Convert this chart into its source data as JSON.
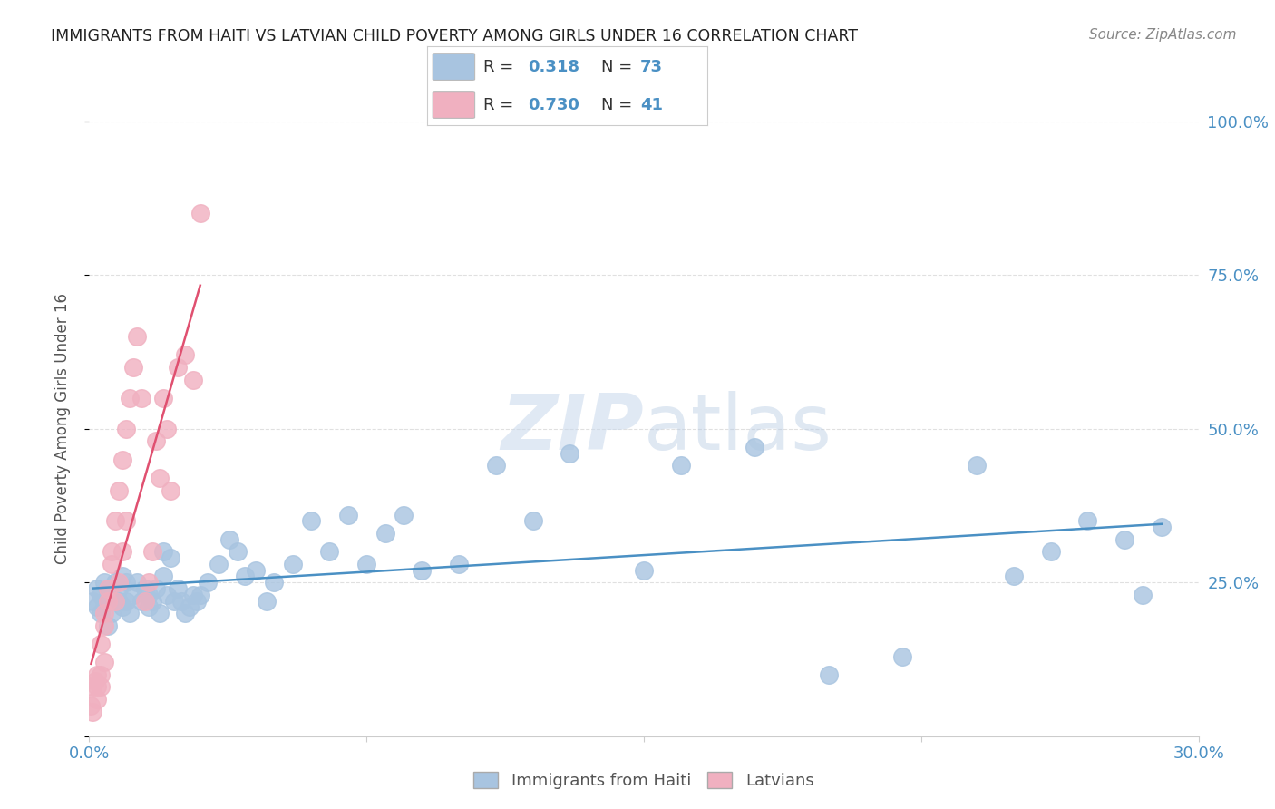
{
  "title": "IMMIGRANTS FROM HAITI VS LATVIAN CHILD POVERTY AMONG GIRLS UNDER 16 CORRELATION CHART",
  "source": "Source: ZipAtlas.com",
  "ylabel": "Child Poverty Among Girls Under 16",
  "xlim": [
    0.0,
    0.3
  ],
  "ylim": [
    0.0,
    1.0
  ],
  "yticks": [
    0.0,
    0.25,
    0.5,
    0.75,
    1.0
  ],
  "ytick_labels": [
    "",
    "25.0%",
    "50.0%",
    "75.0%",
    "100.0%"
  ],
  "xticks": [
    0.0,
    0.075,
    0.15,
    0.225,
    0.3
  ],
  "xtick_labels": [
    "0.0%",
    "",
    "",
    "",
    "30.0%"
  ],
  "series": [
    {
      "name": "Immigrants from Haiti",
      "R": 0.318,
      "N": 73,
      "color": "#a8c4e0",
      "line_color": "#4a90c4",
      "x": [
        0.001,
        0.002,
        0.002,
        0.003,
        0.003,
        0.004,
        0.004,
        0.005,
        0.005,
        0.005,
        0.006,
        0.006,
        0.007,
        0.008,
        0.008,
        0.009,
        0.009,
        0.01,
        0.01,
        0.011,
        0.012,
        0.013,
        0.014,
        0.015,
        0.016,
        0.016,
        0.017,
        0.018,
        0.019,
        0.02,
        0.02,
        0.021,
        0.022,
        0.023,
        0.024,
        0.025,
        0.026,
        0.027,
        0.028,
        0.029,
        0.03,
        0.032,
        0.035,
        0.038,
        0.04,
        0.042,
        0.045,
        0.048,
        0.05,
        0.055,
        0.06,
        0.065,
        0.07,
        0.075,
        0.08,
        0.085,
        0.09,
        0.1,
        0.11,
        0.12,
        0.13,
        0.15,
        0.16,
        0.18,
        0.2,
        0.22,
        0.24,
        0.25,
        0.26,
        0.27,
        0.28,
        0.285,
        0.29
      ],
      "y": [
        0.22,
        0.24,
        0.21,
        0.23,
        0.2,
        0.22,
        0.25,
        0.24,
        0.22,
        0.18,
        0.23,
        0.2,
        0.25,
        0.24,
        0.22,
        0.21,
        0.26,
        0.22,
        0.25,
        0.2,
        0.23,
        0.25,
        0.22,
        0.24,
        0.21,
        0.23,
        0.22,
        0.24,
        0.2,
        0.3,
        0.26,
        0.23,
        0.29,
        0.22,
        0.24,
        0.22,
        0.2,
        0.21,
        0.23,
        0.22,
        0.23,
        0.25,
        0.28,
        0.32,
        0.3,
        0.26,
        0.27,
        0.22,
        0.25,
        0.28,
        0.35,
        0.3,
        0.36,
        0.28,
        0.33,
        0.36,
        0.27,
        0.28,
        0.44,
        0.35,
        0.46,
        0.27,
        0.44,
        0.47,
        0.1,
        0.13,
        0.44,
        0.26,
        0.3,
        0.35,
        0.32,
        0.23,
        0.34
      ]
    },
    {
      "name": "Latvians",
      "R": 0.73,
      "N": 41,
      "color": "#f0b0c0",
      "line_color": "#e05070",
      "x": [
        0.0005,
        0.001,
        0.001,
        0.0015,
        0.002,
        0.002,
        0.002,
        0.003,
        0.003,
        0.003,
        0.004,
        0.004,
        0.004,
        0.005,
        0.005,
        0.006,
        0.006,
        0.007,
        0.007,
        0.008,
        0.008,
        0.009,
        0.009,
        0.01,
        0.01,
        0.011,
        0.012,
        0.013,
        0.014,
        0.015,
        0.016,
        0.017,
        0.018,
        0.019,
        0.02,
        0.021,
        0.022,
        0.024,
        0.026,
        0.028,
        0.03
      ],
      "y": [
        0.05,
        0.08,
        0.04,
        0.09,
        0.06,
        0.1,
        0.08,
        0.15,
        0.1,
        0.08,
        0.2,
        0.18,
        0.12,
        0.22,
        0.24,
        0.3,
        0.28,
        0.35,
        0.22,
        0.4,
        0.25,
        0.45,
        0.3,
        0.5,
        0.35,
        0.55,
        0.6,
        0.65,
        0.55,
        0.22,
        0.25,
        0.3,
        0.48,
        0.42,
        0.55,
        0.5,
        0.4,
        0.6,
        0.62,
        0.58,
        0.85
      ]
    }
  ],
  "watermark_zip": "ZIP",
  "watermark_atlas": "atlas",
  "background_color": "#ffffff",
  "grid_color": "#e0e0e0",
  "title_color": "#222222",
  "value_color": "#4a90c4",
  "label_color": "#333333",
  "right_axis_color": "#4a90c4",
  "source_color": "#888888"
}
